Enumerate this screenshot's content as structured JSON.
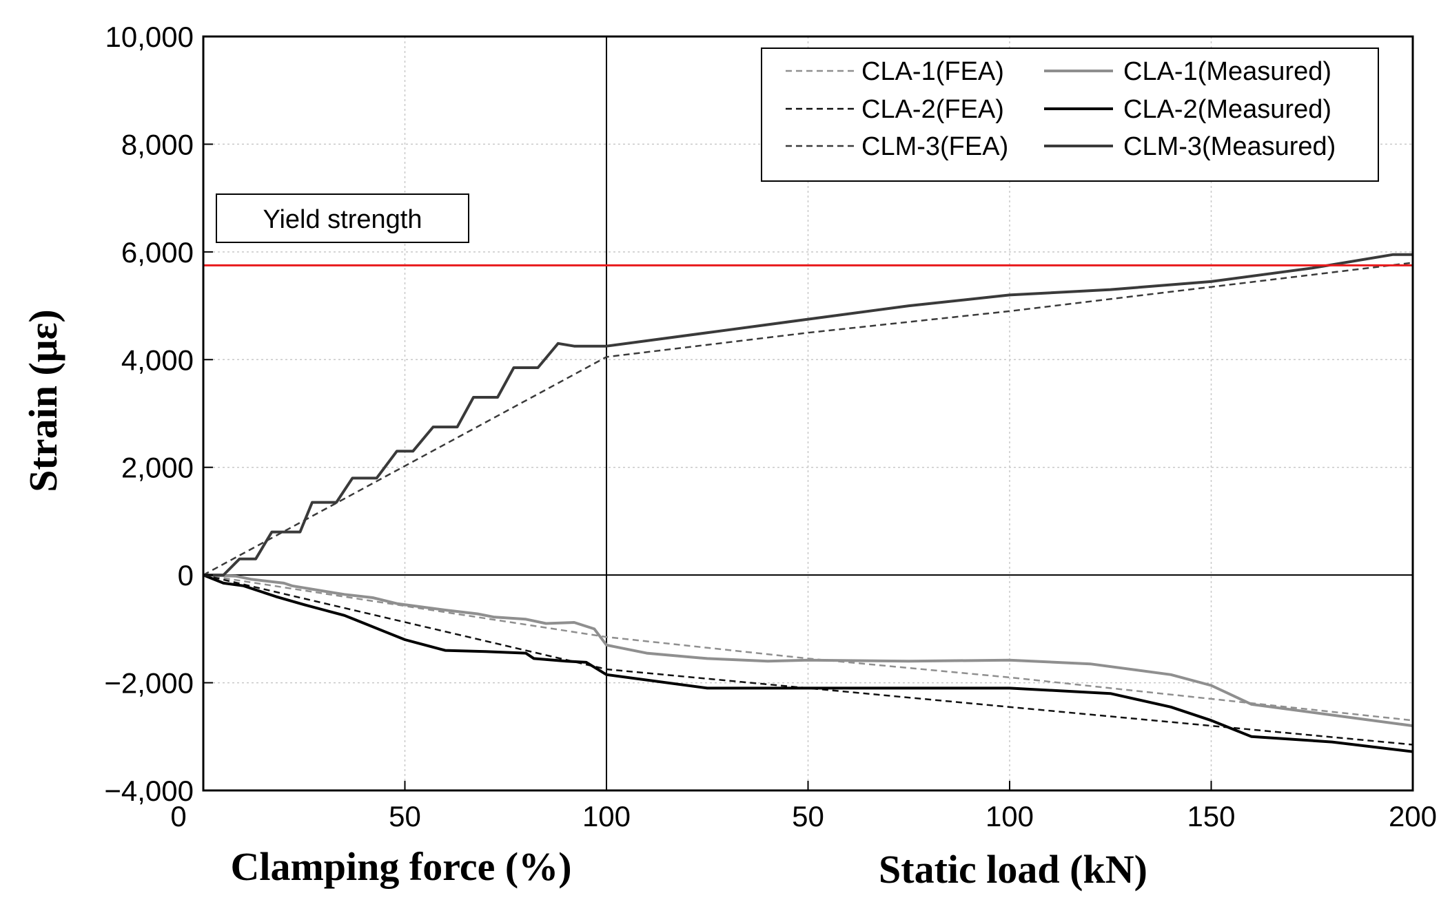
{
  "chart_data": {
    "type": "line",
    "ylabel": "Strain (με)",
    "ylim": [
      -4000,
      10000
    ],
    "yticks": [
      -4000,
      -2000,
      0,
      2000,
      4000,
      6000,
      8000,
      10000
    ],
    "ytick_labels": [
      "−4,000",
      "−2,000",
      "0",
      "2,000",
      "4,000",
      "6,000",
      "8,000",
      "10,000"
    ],
    "grid": true,
    "panels": [
      {
        "name": "clamping",
        "xlabel": "Clamping force (%)",
        "xlim": [
          0,
          100
        ],
        "xticks": [
          0,
          50,
          100
        ],
        "xtick_labels": [
          "0",
          "50",
          "100"
        ]
      },
      {
        "name": "static",
        "xlabel": "Static load (kN)",
        "xlim": [
          0,
          200
        ],
        "xticks": [
          50,
          100,
          150,
          200
        ],
        "xtick_labels": [
          "50",
          "100",
          "150",
          "200"
        ]
      }
    ],
    "reference_line": {
      "label": "Yield strength",
      "value": 5750,
      "color": "#e8191b"
    },
    "legend_position": "top-right",
    "series": [
      {
        "name": "CLA-1(FEA)",
        "dash": true,
        "color": "#8f8f8f",
        "clamping": {
          "x": [
            0,
            100
          ],
          "y": [
            0,
            -1150
          ]
        },
        "static": {
          "x": [
            0,
            50,
            100,
            150,
            200
          ],
          "y": [
            -1150,
            -1550,
            -1900,
            -2300,
            -2700
          ]
        }
      },
      {
        "name": "CLA-1(Measured)",
        "dash": false,
        "color": "#8f8f8f",
        "clamping": {
          "x": [
            0,
            8,
            12,
            20,
            22,
            30,
            35,
            42,
            48,
            55,
            60,
            68,
            72,
            80,
            85,
            92,
            97,
            100
          ],
          "y": [
            0,
            -20,
            -80,
            -150,
            -200,
            -300,
            -360,
            -420,
            -530,
            -600,
            -650,
            -720,
            -780,
            -820,
            -900,
            -880,
            -1000,
            -1300
          ]
        },
        "static": {
          "x": [
            0,
            10,
            25,
            40,
            50,
            75,
            100,
            120,
            140,
            150,
            160,
            180,
            200
          ],
          "y": [
            -1300,
            -1450,
            -1550,
            -1600,
            -1580,
            -1600,
            -1580,
            -1650,
            -1850,
            -2050,
            -2400,
            -2600,
            -2800
          ]
        }
      },
      {
        "name": "CLA-2(FEA)",
        "dash": true,
        "color": "#111111",
        "clamping": {
          "x": [
            0,
            100
          ],
          "y": [
            0,
            -1750
          ]
        },
        "static": {
          "x": [
            0,
            50,
            100,
            150,
            200
          ],
          "y": [
            -1750,
            -2100,
            -2450,
            -2800,
            -3150
          ]
        }
      },
      {
        "name": "CLA-2(Measured)",
        "dash": false,
        "color": "#000000",
        "clamping": {
          "x": [
            0,
            5,
            10,
            18,
            25,
            30,
            35,
            40,
            45,
            50,
            55,
            60,
            70,
            80,
            82,
            90,
            95,
            100
          ],
          "y": [
            0,
            -150,
            -200,
            -400,
            -550,
            -650,
            -750,
            -900,
            -1050,
            -1200,
            -1300,
            -1400,
            -1420,
            -1450,
            -1550,
            -1600,
            -1620,
            -1850
          ]
        },
        "static": {
          "x": [
            0,
            25,
            50,
            75,
            100,
            125,
            140,
            150,
            160,
            180,
            200
          ],
          "y": [
            -1850,
            -2100,
            -2100,
            -2100,
            -2100,
            -2200,
            -2450,
            -2700,
            -3000,
            -3100,
            -3280
          ]
        }
      },
      {
        "name": "CLM-3(FEA)",
        "dash": true,
        "color": "#3a3a3a",
        "clamping": {
          "x": [
            0,
            100
          ],
          "y": [
            0,
            4050
          ]
        },
        "static": {
          "x": [
            0,
            50,
            100,
            150,
            200
          ],
          "y": [
            4050,
            4500,
            4900,
            5350,
            5800
          ]
        }
      },
      {
        "name": "CLM-3(Measured)",
        "dash": false,
        "color": "#3a3a3a",
        "clamping": {
          "x": [
            0,
            5,
            9,
            13,
            17,
            24,
            27,
            33,
            37,
            43,
            48,
            52,
            57,
            63,
            67,
            73,
            77,
            83,
            88,
            92,
            100
          ],
          "y": [
            0,
            0,
            300,
            300,
            800,
            800,
            1350,
            1350,
            1800,
            1800,
            2300,
            2300,
            2750,
            2750,
            3300,
            3300,
            3850,
            3850,
            4300,
            4250,
            4250
          ]
        },
        "static": {
          "x": [
            0,
            15,
            30,
            50,
            75,
            100,
            125,
            150,
            175,
            195,
            200
          ],
          "y": [
            4250,
            4400,
            4550,
            4750,
            5000,
            5200,
            5300,
            5450,
            5700,
            5950,
            5950
          ]
        }
      }
    ]
  }
}
